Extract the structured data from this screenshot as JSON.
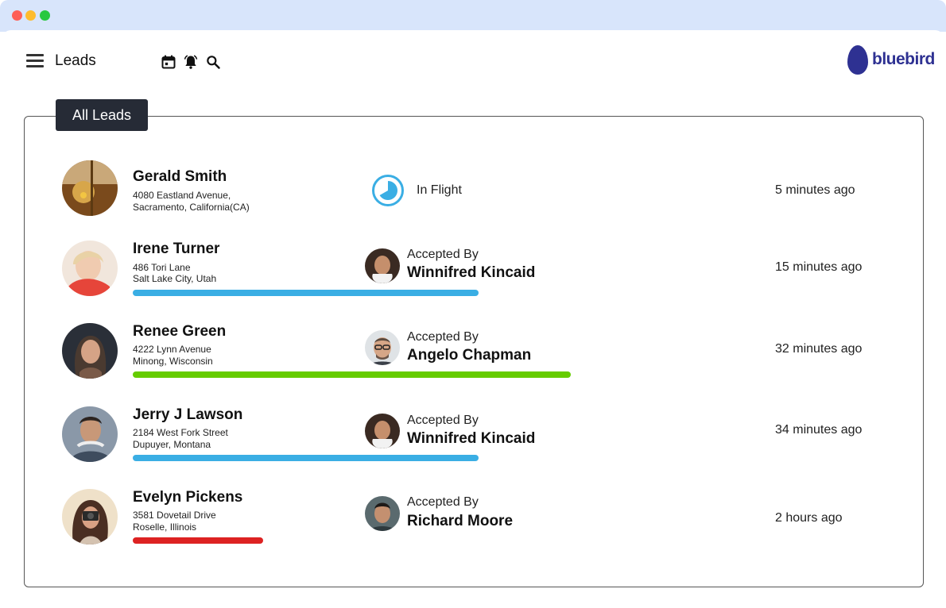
{
  "header": {
    "title": "Leads",
    "icons": [
      "calendar-icon",
      "bell-icon",
      "search-icon"
    ],
    "logo_text": "bluebird"
  },
  "panel": {
    "tab_label": "All Leads"
  },
  "leads": [
    {
      "name": "Gerald Smith",
      "address_line1": "4080 Eastland Avenue,",
      "address_line2": "Sacramento, California(CA)",
      "status": "In Flight",
      "time": "5 minutes ago"
    },
    {
      "name": "Irene Turner",
      "address_line1": "486 Tori Lane",
      "address_line2": "Salt Lake City, Utah",
      "accepted_label": "Accepted By",
      "agent": "Winnifred Kincaid",
      "time": "15 minutes ago",
      "progress_color": "#3aaee4"
    },
    {
      "name": "Renee Green",
      "address_line1": "4222 Lynn Avenue",
      "address_line2": "Minong, Wisconsin",
      "accepted_label": "Accepted By",
      "agent": "Angelo Chapman",
      "time": "32 minutes ago",
      "progress_color": "#66cc00"
    },
    {
      "name": "Jerry J Lawson",
      "address_line1": "2184 West Fork Street",
      "address_line2": "Dupuyer, Montana",
      "accepted_label": "Accepted By",
      "agent": "Winnifred Kincaid",
      "time": "34 minutes ago",
      "progress_color": "#3aaee4"
    },
    {
      "name": "Evelyn Pickens",
      "address_line1": "3581 Dovetail Drive",
      "address_line2": "Roselle, Illinois",
      "accepted_label": "Accepted By",
      "agent": "Richard Moore",
      "time": "2 hours ago",
      "progress_color": "#dd2222"
    }
  ],
  "colors": {
    "brand": "#2e3192",
    "tab_bg": "#262b36",
    "in_flight": "#3aaee4"
  }
}
